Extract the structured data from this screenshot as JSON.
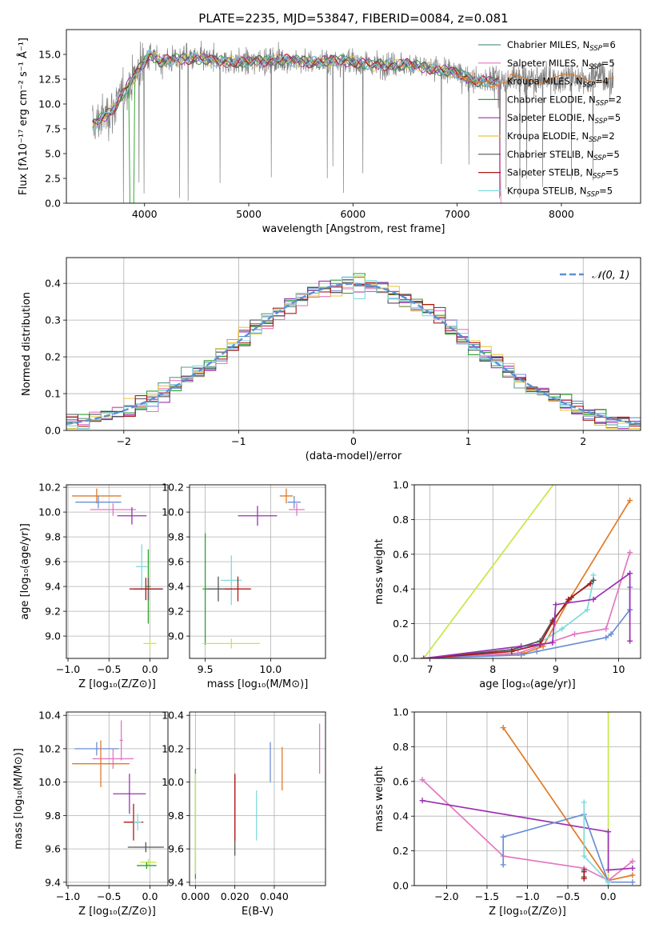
{
  "chart_data": [
    {
      "type": "line",
      "title": "PLATE=2235, MJD=53847, FIBERID=0084, z=0.081",
      "xlabel": "wavelength [Angstrom, rest frame]",
      "ylabel": "Flux [fλ10⁻¹⁷ erg cm⁻² s⁻¹ Å⁻¹]",
      "xlim": [
        3250,
        8760
      ],
      "ylim": [
        0,
        17.5
      ],
      "xticks": [
        "4000",
        "5000",
        "6000",
        "7000",
        "8000"
      ],
      "yticks": [
        "0.0",
        "2.5",
        "5.0",
        "7.5",
        "10.0",
        "12.5",
        "15.0"
      ],
      "legend_loc": "upper right",
      "series": [
        {
          "name": "Chabrier MILES, N_SSP=6",
          "color": "#5b9a8b"
        },
        {
          "name": "Salpeter MILES, N_SSP=5",
          "color": "#e377c2"
        },
        {
          "name": "Kroupa MILES, N_SSP=4",
          "color": "#6b8fd6"
        },
        {
          "name": "Chabrier ELODIE, N_SSP=2",
          "color": "#2ca02c"
        },
        {
          "name": "Salpeter ELODIE, N_SSP=5",
          "color": "#9b30b0"
        },
        {
          "name": "Kroupa ELODIE, N_SSP=2",
          "color": "#e8c840"
        },
        {
          "name": "Chabrier STELIB, N_SSP=5",
          "color": "#555555"
        },
        {
          "name": "Salpeter STELIB, N_SSP=5",
          "color": "#b01818"
        },
        {
          "name": "Kroupa STELIB, N_SSP=5",
          "color": "#7fdada"
        }
      ],
      "model_shape": {
        "x": [
          3500,
          3700,
          3850,
          3950,
          4050,
          4150,
          4300,
          4500,
          4700,
          5000,
          5300,
          5600,
          5900,
          6200,
          6500,
          6800,
          7000,
          7200,
          7400
        ],
        "y": [
          7.8,
          9.5,
          12.0,
          13.5,
          15.0,
          14.3,
          14.5,
          14.6,
          14.3,
          14.2,
          14.5,
          14.2,
          14.4,
          13.9,
          14.0,
          13.5,
          13.1,
          12.3,
          12.2
        ]
      }
    },
    {
      "type": "histogram",
      "xlabel": "(data-model)/error",
      "ylabel": "Normed distribution",
      "xlim": [
        -2.5,
        2.5
      ],
      "ylim": [
        0,
        0.47
      ],
      "xticks": [
        "−2",
        "−1",
        "0",
        "1",
        "2"
      ],
      "yticks": [
        "0.0",
        "0.1",
        "0.2",
        "0.3",
        "0.4"
      ],
      "legend": [
        "𝒩(0, 1)"
      ],
      "legend_loc": "upper right",
      "gaussian": {
        "mu": 0,
        "sigma": 1,
        "color": "#5b8fd6"
      }
    },
    {
      "type": "scatter",
      "panel": "age vs Z",
      "xlabel": "Z [log₁₀(Z/Z⊙)]",
      "ylabel": "age  [log₁₀(age/yr)]",
      "xlim": [
        -1.02,
        0.22
      ],
      "ylim": [
        8.82,
        10.22
      ],
      "xticks": [
        "−1.0",
        "−0.5",
        "0.0"
      ],
      "yticks": [
        "9.0",
        "9.2",
        "9.4",
        "9.6",
        "9.8",
        "10.0",
        "10.2"
      ],
      "points": [
        {
          "x": -0.65,
          "y": 10.13,
          "xerr": 0.3,
          "yerr": 0.06,
          "color": "#e07b27"
        },
        {
          "x": -0.63,
          "y": 10.08,
          "xerr": 0.28,
          "yerr": 0.05,
          "color": "#6b8fd6"
        },
        {
          "x": -0.45,
          "y": 10.02,
          "xerr": 0.28,
          "yerr": 0.05,
          "color": "#e377c2"
        },
        {
          "x": -0.22,
          "y": 9.97,
          "xerr": 0.18,
          "yerr": 0.07,
          "color": "#9b30b0"
        },
        {
          "x": -0.1,
          "y": 9.56,
          "xerr": 0.07,
          "yerr": 0.18,
          "color": "#7fdada"
        },
        {
          "x": -0.02,
          "y": 9.4,
          "xerr": 0.03,
          "yerr": 0.3,
          "color": "#2ca02c"
        },
        {
          "x": -0.02,
          "y": 9.38,
          "xerr": 0.18,
          "yerr": 0.09,
          "color": "#555555"
        },
        {
          "x": -0.05,
          "y": 9.38,
          "xerr": 0.2,
          "yerr": 0.09,
          "color": "#b01818"
        },
        {
          "x": 0.0,
          "y": 8.94,
          "xerr": 0.08,
          "yerr": 0.04,
          "color": "#c6e84a"
        }
      ]
    },
    {
      "type": "scatter",
      "panel": "age vs mass",
      "xlabel": "mass [log₁₀(M/M⊙)]",
      "ylabel": "",
      "xlim": [
        9.38,
        10.42
      ],
      "ylim": [
        8.82,
        10.22
      ],
      "xticks": [
        "9.5",
        "10.0"
      ],
      "yticks": [
        "9.0",
        "9.2",
        "9.4",
        "9.6",
        "9.8",
        "10.0",
        "10.2"
      ],
      "points": [
        {
          "x": 10.12,
          "y": 10.13,
          "xerr": 0.05,
          "yerr": 0.06,
          "color": "#e07b27"
        },
        {
          "x": 10.18,
          "y": 10.08,
          "xerr": 0.05,
          "yerr": 0.05,
          "color": "#6b8fd6"
        },
        {
          "x": 10.2,
          "y": 10.02,
          "xerr": 0.06,
          "yerr": 0.05,
          "color": "#e377c2"
        },
        {
          "x": 9.9,
          "y": 9.97,
          "xerr": 0.15,
          "yerr": 0.08,
          "color": "#9b30b0"
        },
        {
          "x": 9.7,
          "y": 9.45,
          "xerr": 0.08,
          "yerr": 0.2,
          "color": "#7fdada"
        },
        {
          "x": 9.6,
          "y": 9.38,
          "xerr": 0.1,
          "yerr": 0.1,
          "color": "#555555"
        },
        {
          "x": 9.75,
          "y": 9.38,
          "xerr": 0.1,
          "yerr": 0.1,
          "color": "#b01818"
        },
        {
          "x": 9.5,
          "y": 9.38,
          "xerr": 0.02,
          "yerr": 0.45,
          "color": "#2ca02c"
        },
        {
          "x": 9.7,
          "y": 8.94,
          "xerr": 0.22,
          "yerr": 0.04,
          "color": "#c6e84a"
        }
      ]
    },
    {
      "type": "line",
      "panel": "mass weight vs age",
      "xlabel": "age  [log₁₀(age/yr)]",
      "ylabel": "mass weight",
      "xlim": [
        6.75,
        10.35
      ],
      "ylim": [
        0,
        1.0
      ],
      "xticks": [
        "7",
        "8",
        "9",
        "10"
      ],
      "yticks": [
        "0.0",
        "0.2",
        "0.4",
        "0.6",
        "0.8",
        "1.0"
      ],
      "series": [
        {
          "color": "#c6e84a",
          "x": [
            6.9,
            9.0
          ],
          "y": [
            0.0,
            1.02
          ]
        },
        {
          "color": "#e07b27",
          "x": [
            6.9,
            8.5,
            8.8,
            9.2,
            10.18
          ],
          "y": [
            0.0,
            0.03,
            0.07,
            0.33,
            0.91
          ]
        },
        {
          "color": "#e377c2",
          "x": [
            6.9,
            8.4,
            9.3,
            9.8,
            10.18
          ],
          "y": [
            0.0,
            0.03,
            0.14,
            0.17,
            0.61
          ]
        },
        {
          "color": "#6b8fd6",
          "x": [
            6.9,
            8.45,
            8.7,
            9.8,
            9.88,
            10.18,
            10.18
          ],
          "y": [
            0.0,
            0.02,
            0.04,
            0.12,
            0.14,
            0.28,
            0.41
          ]
        },
        {
          "color": "#7fdada",
          "x": [
            6.9,
            8.3,
            8.7,
            9.1,
            9.5,
            9.6,
            9.6
          ],
          "y": [
            0.0,
            0.05,
            0.08,
            0.17,
            0.28,
            0.45,
            0.48
          ]
        },
        {
          "color": "#555555",
          "x": [
            6.9,
            8.3,
            8.75,
            8.95,
            9.25,
            9.6
          ],
          "y": [
            0.0,
            0.05,
            0.1,
            0.22,
            0.35,
            0.45
          ]
        },
        {
          "color": "#b01818",
          "x": [
            6.9,
            8.3,
            8.75,
            8.95,
            9.2,
            9.55
          ],
          "y": [
            0.0,
            0.04,
            0.08,
            0.21,
            0.34,
            0.43
          ]
        },
        {
          "color": "#9b30b0",
          "x": [
            6.9,
            8.45,
            8.95,
            9.0,
            9.6,
            10.18,
            10.18
          ],
          "y": [
            0.0,
            0.07,
            0.09,
            0.31,
            0.34,
            0.49,
            0.1
          ]
        }
      ]
    },
    {
      "type": "scatter",
      "panel": "mass vs Z",
      "xlabel": "Z [log₁₀(Z/Z⊙)]",
      "ylabel": "mass [log₁₀(M/M⊙)]",
      "xlim": [
        -1.02,
        0.22
      ],
      "ylim": [
        9.38,
        10.42
      ],
      "xticks": [
        "−1.0",
        "−0.5",
        "0.0"
      ],
      "yticks": [
        "9.4",
        "9.6",
        "9.8",
        "10.0",
        "10.2",
        "10.4"
      ],
      "points": [
        {
          "x": -0.65,
          "y": 10.2,
          "xerr": 0.27,
          "yerr": 0.04,
          "color": "#6b8fd6"
        },
        {
          "x": -0.45,
          "y": 10.14,
          "xerr": 0.25,
          "yerr": 0.06,
          "color": "#e377c2"
        },
        {
          "x": -0.35,
          "y": 10.25,
          "xerr": 0.02,
          "yerr": 0.12,
          "color": "#e377c2"
        },
        {
          "x": -0.6,
          "y": 10.11,
          "xerr": 0.35,
          "yerr": 0.14,
          "color": "#e07b27"
        },
        {
          "x": -0.25,
          "y": 9.93,
          "xerr": 0.2,
          "yerr": 0.12,
          "color": "#9b30b0"
        },
        {
          "x": -0.2,
          "y": 9.76,
          "xerr": 0.12,
          "yerr": 0.11,
          "color": "#b01818"
        },
        {
          "x": -0.15,
          "y": 9.76,
          "xerr": 0.05,
          "yerr": 0.05,
          "color": "#7fdada"
        },
        {
          "x": -0.05,
          "y": 9.61,
          "xerr": 0.22,
          "yerr": 0.03,
          "color": "#555555"
        },
        {
          "x": -0.02,
          "y": 9.52,
          "xerr": 0.1,
          "yerr": 0.02,
          "color": "#c6e84a"
        },
        {
          "x": -0.04,
          "y": 9.5,
          "xerr": 0.12,
          "yerr": 0.02,
          "color": "#2ca02c"
        }
      ]
    },
    {
      "type": "scatter",
      "panel": "mass vs E(B-V)",
      "xlabel": "E(B-V)",
      "ylabel": "",
      "xlim": [
        -0.003,
        0.066
      ],
      "ylim": [
        9.38,
        10.42
      ],
      "xticks": [
        "0.000",
        "0.020",
        "0.040"
      ],
      "yticks": [
        "9.4",
        "9.6",
        "9.8",
        "10.0",
        "10.2",
        "10.4"
      ],
      "points": [
        {
          "x": 0.0,
          "y": 9.75,
          "xerr": 0,
          "yerr": 0.33,
          "color": "#2ca02c"
        },
        {
          "x": 0.0,
          "y": 9.75,
          "xerr": 0,
          "yerr": 0.3,
          "color": "#c6e84a"
        },
        {
          "x": 0.02,
          "y": 9.8,
          "xerr": 0,
          "yerr": 0.24,
          "color": "#555555"
        },
        {
          "x": 0.02,
          "y": 9.85,
          "xerr": 0,
          "yerr": 0.2,
          "color": "#b01818"
        },
        {
          "x": 0.031,
          "y": 9.8,
          "xerr": 0,
          "yerr": 0.15,
          "color": "#7fdada"
        },
        {
          "x": 0.038,
          "y": 10.12,
          "xerr": 0,
          "yerr": 0.12,
          "color": "#6b8fd6"
        },
        {
          "x": 0.044,
          "y": 10.08,
          "xerr": 0,
          "yerr": 0.13,
          "color": "#e07b27"
        },
        {
          "x": 0.063,
          "y": 10.2,
          "xerr": 0,
          "yerr": 0.15,
          "color": "#e377c2"
        }
      ]
    },
    {
      "type": "line",
      "panel": "mass weight vs Z",
      "xlabel": "Z [log₁₀(Z/Z⊙)]",
      "ylabel": "mass weight",
      "xlim": [
        -2.4,
        0.4
      ],
      "ylim": [
        0,
        1.0
      ],
      "xticks": [
        "−2.0",
        "−1.5",
        "−1.0",
        "−0.5",
        "0.0"
      ],
      "yticks": [
        "0.0",
        "0.2",
        "0.4",
        "0.6",
        "0.8",
        "1.0"
      ],
      "series": [
        {
          "color": "#c6e84a",
          "x": [
            0.0,
            0.0
          ],
          "y": [
            0.0,
            1.0
          ]
        },
        {
          "color": "#e07b27",
          "x": [
            -1.3,
            0.0,
            0.3
          ],
          "y": [
            0.91,
            0.03,
            0.06
          ]
        },
        {
          "color": "#e377c2",
          "x": [
            -2.3,
            -1.3,
            -0.3,
            0.0,
            0.3
          ],
          "y": [
            0.61,
            0.17,
            0.1,
            0.03,
            0.14
          ]
        },
        {
          "color": "#9b30b0",
          "x": [
            -2.3,
            0.0,
            0.0,
            0.3
          ],
          "y": [
            0.49,
            0.31,
            0.09,
            0.1
          ]
        },
        {
          "color": "#6b8fd6",
          "x": [
            -1.3,
            -1.3,
            -0.3,
            0.0,
            0.3
          ],
          "y": [
            0.12,
            0.28,
            0.41,
            0.02,
            0.02
          ]
        },
        {
          "color": "#7fdada",
          "x": [
            -0.3,
            -0.3,
            0.0
          ],
          "y": [
            0.48,
            0.17,
            0.02
          ]
        },
        {
          "color": "#555555",
          "x": [
            -0.3,
            -0.3
          ],
          "y": [
            0.09,
            0.05
          ]
        },
        {
          "color": "#b01818",
          "x": [
            -0.3,
            -0.3
          ],
          "y": [
            0.08,
            0.04
          ]
        }
      ]
    }
  ]
}
